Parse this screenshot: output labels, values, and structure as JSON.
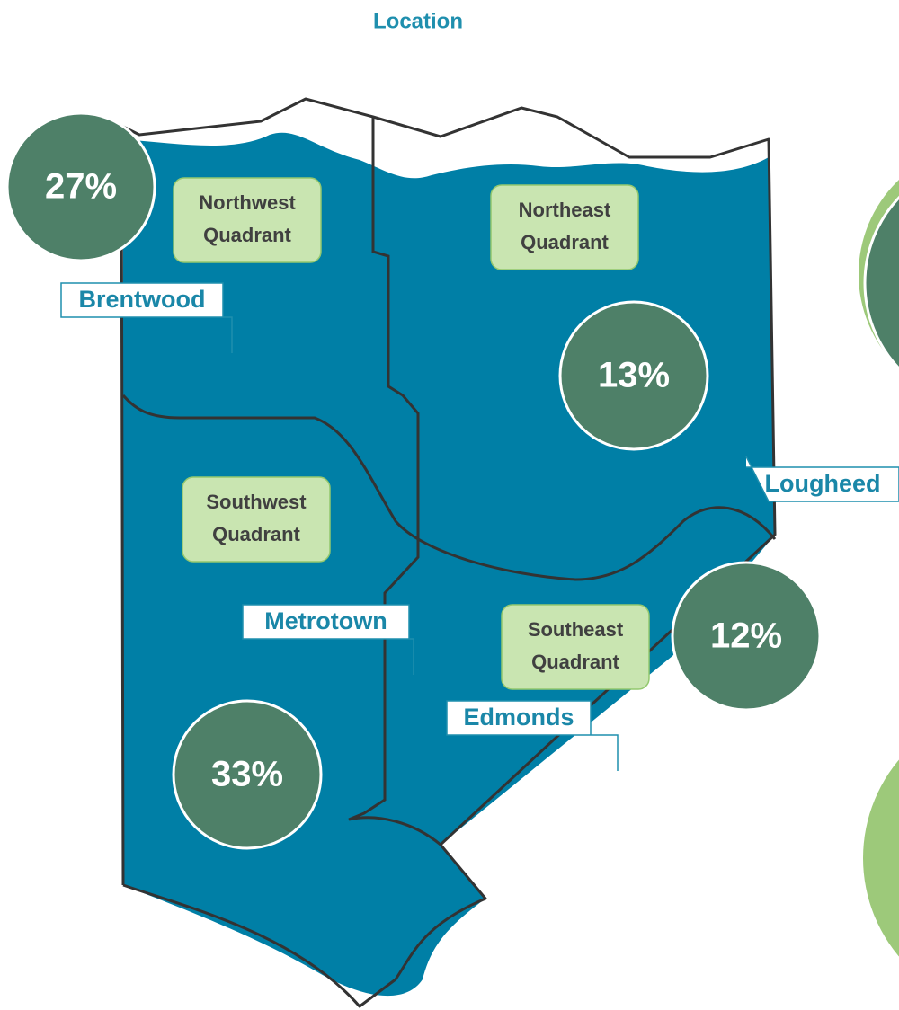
{
  "title": "Location",
  "quadrants": [
    {
      "line1": "Northwest",
      "line2": "Quadrant"
    },
    {
      "line1": "Northeast",
      "line2": "Quadrant"
    },
    {
      "line1": "Southwest",
      "line2": "Quadrant"
    },
    {
      "line1": "Southeast",
      "line2": "Quadrant"
    }
  ],
  "areas": [
    "Brentwood",
    "Lougheed",
    "Metrotown",
    "Edmonds"
  ],
  "percents": [
    "27%",
    "13%",
    "12%",
    "33%"
  ]
}
